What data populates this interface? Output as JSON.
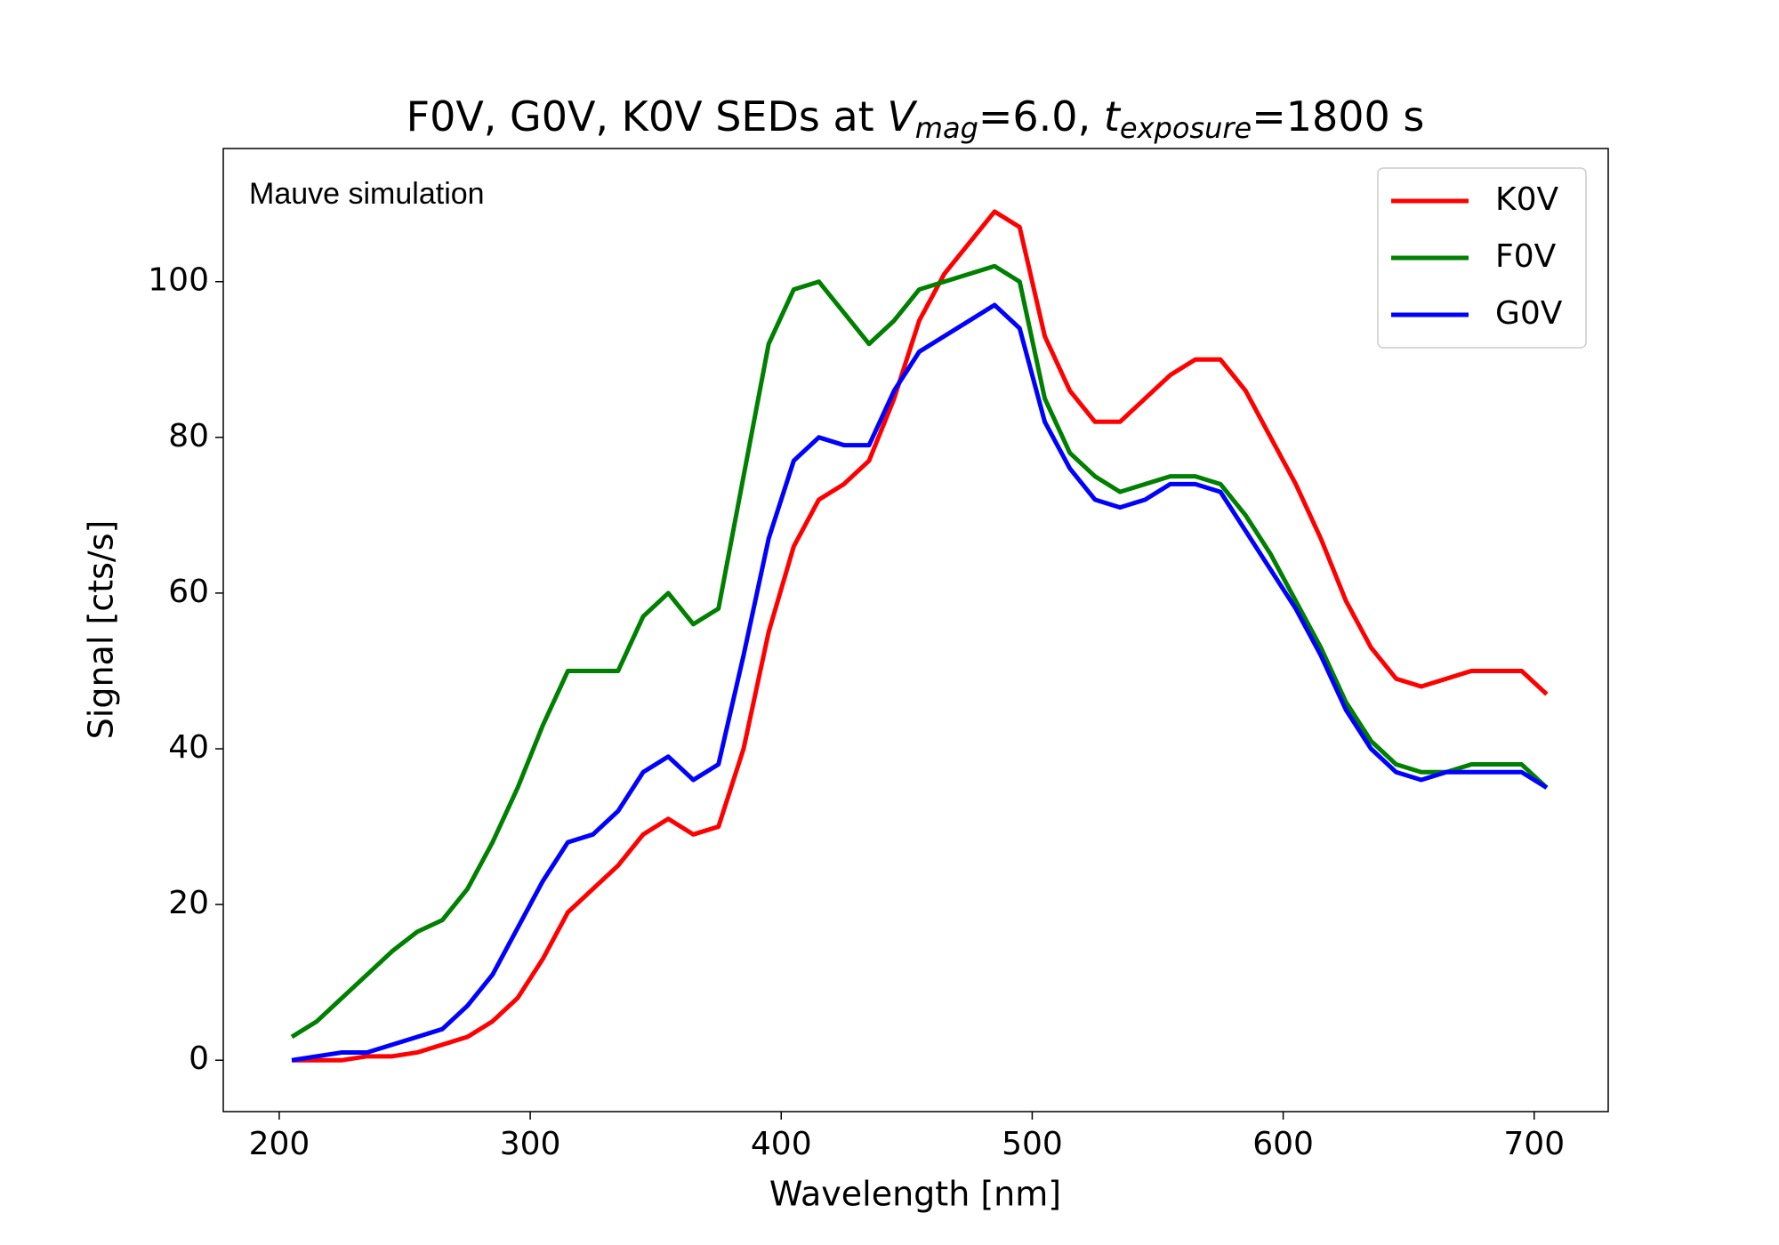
{
  "chart_data": {
    "type": "line",
    "title_parts": [
      "F0V, G0V, K0V SEDs at ",
      "V",
      "mag",
      "=6.0, ",
      "t",
      "exposure",
      "=1800 s"
    ],
    "annotation": "Mauve simulation",
    "xlabel": "Wavelength [nm]",
    "ylabel": "Signal [cts/s]",
    "xlim": [
      177.7,
      729.5
    ],
    "ylim": [
      -6.6,
      117.1
    ],
    "xticks": [
      200,
      300,
      400,
      500,
      600,
      700
    ],
    "yticks": [
      0,
      20,
      40,
      60,
      80,
      100
    ],
    "grid": false,
    "legend": "upper right",
    "x": [
      205,
      215,
      225,
      235,
      245,
      255,
      265,
      275,
      285,
      295,
      305,
      315,
      325,
      335,
      345,
      355,
      365,
      375,
      385,
      395,
      405,
      415,
      425,
      435,
      445,
      455,
      465,
      475,
      485,
      495,
      505,
      515,
      525,
      535,
      545,
      555,
      565,
      575,
      585,
      595,
      605,
      615,
      625,
      635,
      645,
      655,
      665,
      675,
      685,
      695,
      705
    ],
    "series": [
      {
        "name": "K0V",
        "color": "#ff0000",
        "values": [
          0,
          0,
          0,
          0.5,
          0.5,
          1,
          2,
          3,
          5,
          8,
          13,
          19,
          22,
          25,
          29,
          31,
          29,
          30,
          40,
          55,
          66,
          72,
          74,
          77,
          85,
          95,
          101,
          105,
          109,
          107,
          93,
          86,
          82,
          82,
          85,
          88,
          90,
          90,
          86,
          80,
          74,
          67,
          59,
          53,
          49,
          48,
          49,
          50,
          50,
          50,
          47
        ]
      },
      {
        "name": "F0V",
        "color": "#008000",
        "values": [
          3,
          5,
          8,
          11,
          14,
          16.5,
          18,
          22,
          28,
          35,
          43,
          50,
          50,
          50,
          57,
          60,
          56,
          58,
          75,
          92,
          99,
          100,
          96,
          92,
          95,
          99,
          100,
          101,
          102,
          100,
          85,
          78,
          75,
          73,
          74,
          75,
          75,
          74,
          70,
          65,
          59,
          53,
          46,
          41,
          38,
          37,
          37,
          38,
          38,
          38,
          35
        ]
      },
      {
        "name": "G0V",
        "color": "#0000ff",
        "values": [
          0,
          0.5,
          1,
          1,
          2,
          3,
          4,
          7,
          11,
          17,
          23,
          28,
          29,
          32,
          37,
          39,
          36,
          38,
          52,
          67,
          77,
          80,
          79,
          79,
          86,
          91,
          93,
          95,
          97,
          94,
          82,
          76,
          72,
          71,
          72,
          74,
          74,
          73,
          68,
          63,
          58,
          52,
          45,
          40,
          37,
          36,
          37,
          37,
          37,
          37,
          35
        ]
      }
    ]
  }
}
